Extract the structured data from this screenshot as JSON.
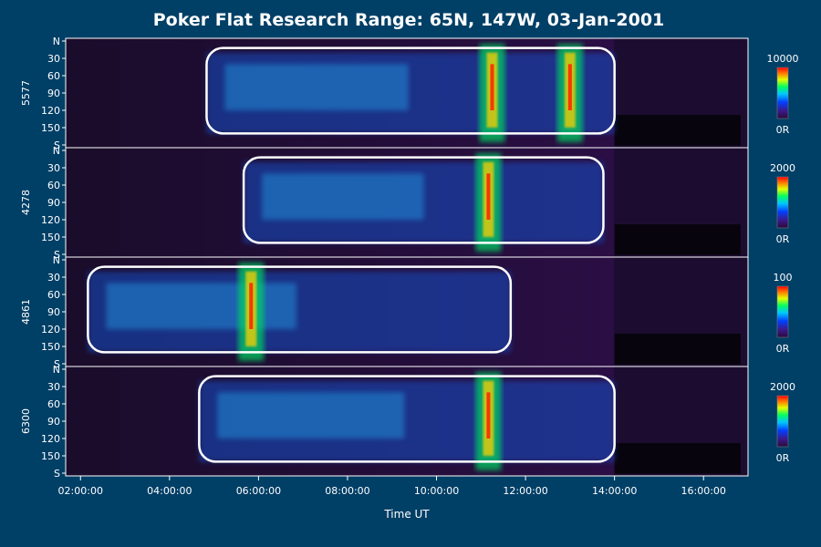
{
  "chart_data": {
    "type": "heatmap",
    "title": "Poker Flat Research Range: 65N, 147W, 03-Jan-2001",
    "xlabel": "Time UT",
    "x_ticks": [
      "02:00:00",
      "04:00:00",
      "06:00:00",
      "08:00:00",
      "10:00:00",
      "12:00:00",
      "14:00:00",
      "16:00:00"
    ],
    "xlim": [
      "01:40:00",
      "17:00:00"
    ],
    "y_ticks": [
      "N",
      "30",
      "60",
      "90",
      "120",
      "150",
      "S"
    ],
    "ylim": [
      0,
      180
    ],
    "colorscale": [
      "#2a0a3c",
      "#3a1a8a",
      "#0040ff",
      "#00c8ff",
      "#00ff60",
      "#e0ff00",
      "#ff8000",
      "#ff0000"
    ],
    "panels": [
      {
        "wavelength": "5577",
        "colorbar_max": "10000",
        "colorbar_min": "0R",
        "active_window": [
          "04:50:00",
          "14:00:00"
        ],
        "brightest_times": [
          "11:15:00",
          "13:00:00"
        ]
      },
      {
        "wavelength": "4278",
        "colorbar_max": "2000",
        "colorbar_min": "0R",
        "active_window": [
          "05:40:00",
          "13:45:00"
        ],
        "brightest_times": [
          "11:10:00"
        ]
      },
      {
        "wavelength": "4861",
        "colorbar_max": "100",
        "colorbar_min": "0R",
        "active_window": [
          "02:10:00",
          "11:40:00"
        ],
        "brightest_times": [
          "05:50:00"
        ]
      },
      {
        "wavelength": "6300",
        "colorbar_max": "2000",
        "colorbar_min": "0R",
        "active_window": [
          "04:40:00",
          "14:00:00"
        ],
        "brightest_times": [
          "11:10:00"
        ]
      }
    ]
  }
}
